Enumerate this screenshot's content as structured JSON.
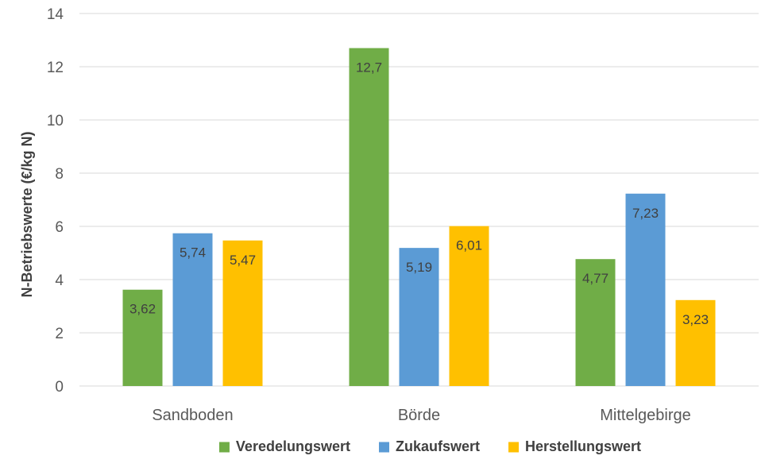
{
  "chart_data": {
    "type": "bar",
    "categories": [
      "Sandboden",
      "Börde",
      "Mittelgebirge"
    ],
    "series": [
      {
        "name": "Veredelungswert",
        "color": "#70ad47",
        "values": [
          3.62,
          12.7,
          4.77
        ],
        "labels": [
          "3,62",
          "12,7",
          "4,77"
        ]
      },
      {
        "name": "Zukaufswert",
        "color": "#5b9bd5",
        "values": [
          5.74,
          5.19,
          7.23
        ],
        "labels": [
          "5,74",
          "5,19",
          "7,23"
        ]
      },
      {
        "name": "Herstellungswert",
        "color": "#ffc000",
        "values": [
          5.47,
          6.01,
          3.23
        ],
        "labels": [
          "5,47",
          "6,01",
          "3,23"
        ]
      }
    ],
    "ylabel": "N-Betriebswerte (€/kg N)",
    "xlabel": "",
    "ylim": [
      0,
      14
    ],
    "yticks": [
      "0",
      "2",
      "4",
      "6",
      "8",
      "10",
      "12",
      "14"
    ],
    "grid": true,
    "legend_position": "bottom"
  }
}
